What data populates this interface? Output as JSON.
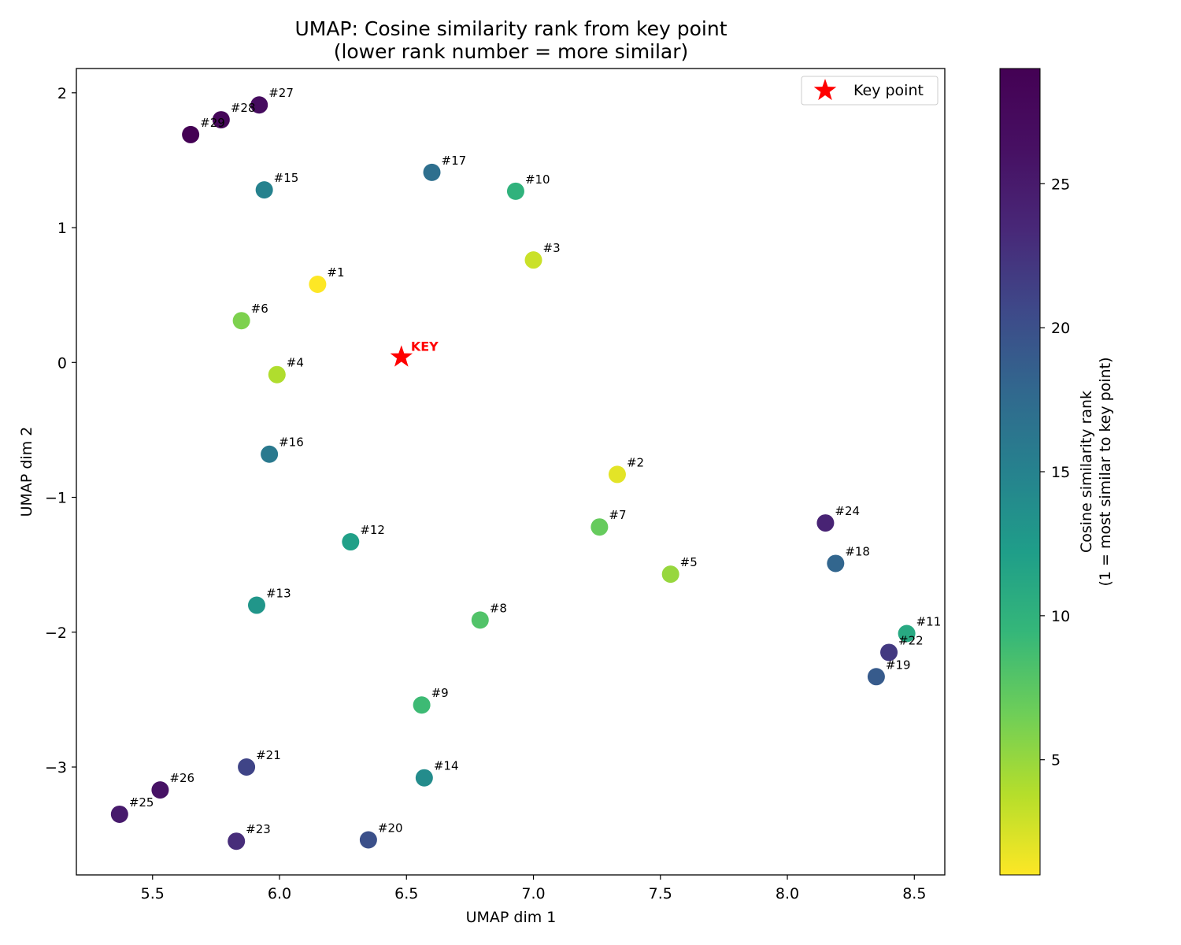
{
  "chart_data": {
    "type": "scatter",
    "title": "UMAP: Cosine similarity rank from key point",
    "subtitle": "(lower rank number = more similar)",
    "xlabel": "UMAP dim 1",
    "ylabel": "UMAP dim 2",
    "xlim": [
      5.2,
      8.62
    ],
    "ylim": [
      -3.8,
      2.18
    ],
    "xticks": [
      5.5,
      6.0,
      6.5,
      7.0,
      7.5,
      8.0,
      8.5
    ],
    "xtick_labels": [
      "5.5",
      "6.0",
      "6.5",
      "7.0",
      "7.5",
      "8.0",
      "8.5"
    ],
    "yticks": [
      2,
      1,
      0,
      -1,
      -2,
      -3
    ],
    "ytick_labels": [
      "2",
      "1",
      "0",
      "−1",
      "−2",
      "−3"
    ],
    "grid": false,
    "colormap": "viridis_r",
    "colorbar": {
      "label_line1": "Cosine similarity rank",
      "label_line2": "(1 = most similar to key point)",
      "range": [
        1,
        29
      ],
      "ticks": [
        5,
        10,
        15,
        20,
        25
      ],
      "tick_labels": [
        "5",
        "10",
        "15",
        "20",
        "25"
      ]
    },
    "legend": {
      "position": "top-right",
      "entry": "Key point",
      "marker_color": "#ff0000"
    },
    "key_point": {
      "x": 6.48,
      "y": 0.04,
      "label": "KEY",
      "color": "#ff0000"
    },
    "points": [
      {
        "rank": 1,
        "label": "#1",
        "x": 6.15,
        "y": 0.58
      },
      {
        "rank": 2,
        "label": "#2",
        "x": 7.33,
        "y": -0.83
      },
      {
        "rank": 3,
        "label": "#3",
        "x": 7.0,
        "y": 0.76
      },
      {
        "rank": 4,
        "label": "#4",
        "x": 5.99,
        "y": -0.09
      },
      {
        "rank": 5,
        "label": "#5",
        "x": 7.54,
        "y": -1.57
      },
      {
        "rank": 6,
        "label": "#6",
        "x": 5.85,
        "y": 0.31
      },
      {
        "rank": 7,
        "label": "#7",
        "x": 7.26,
        "y": -1.22
      },
      {
        "rank": 8,
        "label": "#8",
        "x": 6.79,
        "y": -1.91
      },
      {
        "rank": 9,
        "label": "#9",
        "x": 6.56,
        "y": -2.54
      },
      {
        "rank": 10,
        "label": "#10",
        "x": 6.93,
        "y": 1.27
      },
      {
        "rank": 11,
        "label": "#11",
        "x": 8.47,
        "y": -2.01
      },
      {
        "rank": 12,
        "label": "#12",
        "x": 6.28,
        "y": -1.33
      },
      {
        "rank": 13,
        "label": "#13",
        "x": 5.91,
        "y": -1.8
      },
      {
        "rank": 14,
        "label": "#14",
        "x": 6.57,
        "y": -3.08
      },
      {
        "rank": 15,
        "label": "#15",
        "x": 5.94,
        "y": 1.28
      },
      {
        "rank": 16,
        "label": "#16",
        "x": 5.96,
        "y": -0.68
      },
      {
        "rank": 17,
        "label": "#17",
        "x": 6.6,
        "y": 1.41
      },
      {
        "rank": 18,
        "label": "#18",
        "x": 8.19,
        "y": -1.49
      },
      {
        "rank": 19,
        "label": "#19",
        "x": 8.35,
        "y": -2.33
      },
      {
        "rank": 20,
        "label": "#20",
        "x": 6.35,
        "y": -3.54
      },
      {
        "rank": 21,
        "label": "#21",
        "x": 5.87,
        "y": -3.0
      },
      {
        "rank": 22,
        "label": "#22",
        "x": 8.4,
        "y": -2.15
      },
      {
        "rank": 23,
        "label": "#23",
        "x": 5.83,
        "y": -3.55
      },
      {
        "rank": 24,
        "label": "#24",
        "x": 8.15,
        "y": -1.19
      },
      {
        "rank": 25,
        "label": "#25",
        "x": 5.37,
        "y": -3.35
      },
      {
        "rank": 26,
        "label": "#26",
        "x": 5.53,
        "y": -3.17
      },
      {
        "rank": 27,
        "label": "#27",
        "x": 5.92,
        "y": 1.91
      },
      {
        "rank": 28,
        "label": "#28",
        "x": 5.77,
        "y": 1.8
      },
      {
        "rank": 29,
        "label": "#29",
        "x": 5.65,
        "y": 1.69
      }
    ]
  }
}
